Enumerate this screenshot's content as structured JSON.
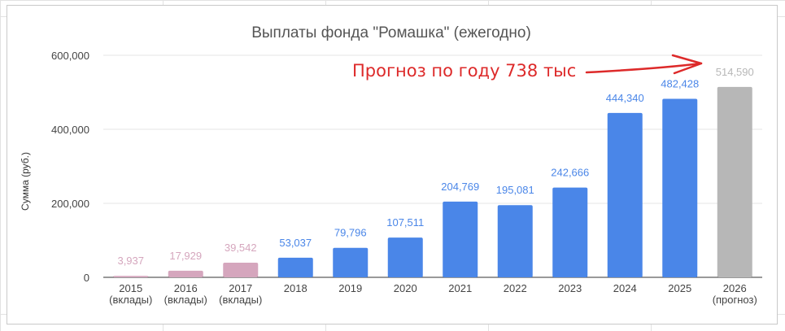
{
  "chart_data": {
    "type": "bar",
    "title": "Выплаты фонда \"Ромашка\" (ежегодно)",
    "ylabel": "Сумма (руб.)",
    "xlabel": "",
    "ylim": [
      0,
      600000
    ],
    "y_ticks": [
      0,
      200000,
      400000,
      600000
    ],
    "y_tick_labels": [
      "0",
      "200,000",
      "400,000",
      "600,000"
    ],
    "grid": true,
    "categories": [
      [
        "2015",
        "(вклады)"
      ],
      [
        "2016",
        "(вклады)"
      ],
      [
        "2017",
        "(вклады)"
      ],
      [
        "2018"
      ],
      [
        "2019"
      ],
      [
        "2020"
      ],
      [
        "2021"
      ],
      [
        "2022"
      ],
      [
        "2023"
      ],
      [
        "2024"
      ],
      [
        "2025"
      ],
      [
        "2026",
        "(прогноз)"
      ]
    ],
    "values": [
      3937,
      17929,
      39542,
      53037,
      79796,
      107511,
      204769,
      195081,
      242666,
      444340,
      482428,
      514590
    ],
    "value_labels": [
      "3,937",
      "17,929",
      "39,542",
      "53,037",
      "79,796",
      "107,511",
      "204,769",
      "195,081",
      "242,666",
      "444,340",
      "482,428",
      "514,590"
    ],
    "bar_colors": [
      "#d5a6bd",
      "#d5a6bd",
      "#d5a6bd",
      "#4a86e8",
      "#4a86e8",
      "#4a86e8",
      "#4a86e8",
      "#4a86e8",
      "#4a86e8",
      "#4a86e8",
      "#4a86e8",
      "#b7b7b7"
    ],
    "label_colors": [
      "#d5a6bd",
      "#d5a6bd",
      "#d5a6bd",
      "#4a86e8",
      "#4a86e8",
      "#4a86e8",
      "#4a86e8",
      "#4a86e8",
      "#4a86e8",
      "#4a86e8",
      "#4a86e8",
      "#b7b7b7"
    ],
    "annotation": {
      "text": "Прогноз по году 738 тыс",
      "color": "#dd2a2a",
      "points_to": "2026 (прогноз)"
    }
  }
}
